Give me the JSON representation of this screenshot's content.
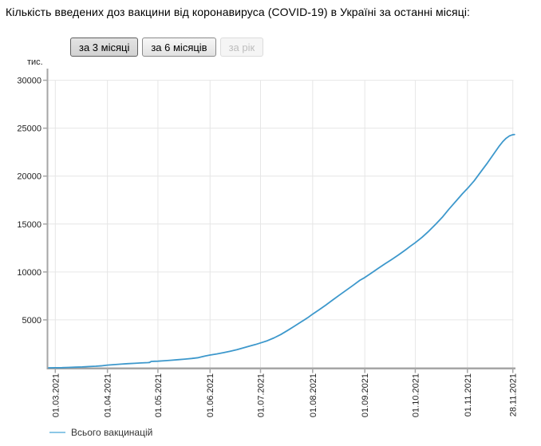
{
  "title": "Кількість введених доз вакцини від коронавируса (COVID-19) в Україні за останні місяці:",
  "buttons": [
    {
      "label": "за 3 місяці",
      "state": "active"
    },
    {
      "label": "за 6 місяців",
      "state": "default"
    },
    {
      "label": "за рік",
      "state": "disabled"
    }
  ],
  "chart_data": {
    "type": "line",
    "title": "",
    "xlabel": "",
    "ylabel": "тис.",
    "x_unit": "days since 01.03.2021",
    "y_unit": "thousand doses",
    "ylim": [
      0,
      31200
    ],
    "y_ticks": [
      5000,
      10000,
      15000,
      20000,
      25000,
      30000
    ],
    "x_ticks": [
      {
        "label": "01.03.2021",
        "day": 0
      },
      {
        "label": "01.04.2021",
        "day": 31
      },
      {
        "label": "01.05.2021",
        "day": 61
      },
      {
        "label": "01.06.2021",
        "day": 92
      },
      {
        "label": "01.07.2021",
        "day": 122
      },
      {
        "label": "01.08.2021",
        "day": 153
      },
      {
        "label": "01.09.2021",
        "day": 184
      },
      {
        "label": "01.10.2021",
        "day": 214
      },
      {
        "label": "01.11.2021",
        "day": 245
      },
      {
        "label": "28.11.2021",
        "day": 272
      }
    ],
    "grid": true,
    "legend_position": "bottom-left",
    "colors": {
      "line": "#3d98cc",
      "legend_dash": "#8cc7e6",
      "grid": "#e6e6e6",
      "axis": "#a6a6a6",
      "label": "#222222"
    },
    "series": [
      {
        "name": "Всього вакцинацій",
        "color": "#3d98cc",
        "points": [
          [
            -4,
            1
          ],
          [
            0,
            8
          ],
          [
            4,
            20
          ],
          [
            8,
            40
          ],
          [
            12,
            65
          ],
          [
            16,
            95
          ],
          [
            20,
            130
          ],
          [
            24,
            170
          ],
          [
            28,
            220
          ],
          [
            31,
            280
          ],
          [
            35,
            330
          ],
          [
            39,
            380
          ],
          [
            43,
            430
          ],
          [
            47,
            470
          ],
          [
            51,
            505
          ],
          [
            55,
            540
          ],
          [
            56,
            555
          ],
          [
            57,
            665
          ],
          [
            59,
            680
          ],
          [
            61,
            695
          ],
          [
            65,
            740
          ],
          [
            69,
            790
          ],
          [
            73,
            845
          ],
          [
            77,
            905
          ],
          [
            81,
            975
          ],
          [
            85,
            1060
          ],
          [
            89,
            1230
          ],
          [
            92,
            1330
          ],
          [
            96,
            1450
          ],
          [
            100,
            1580
          ],
          [
            104,
            1730
          ],
          [
            108,
            1900
          ],
          [
            112,
            2090
          ],
          [
            116,
            2290
          ],
          [
            119,
            2430
          ],
          [
            122,
            2600
          ],
          [
            126,
            2820
          ],
          [
            130,
            3120
          ],
          [
            134,
            3470
          ],
          [
            138,
            3890
          ],
          [
            142,
            4330
          ],
          [
            146,
            4780
          ],
          [
            150,
            5220
          ],
          [
            153,
            5600
          ],
          [
            157,
            6080
          ],
          [
            161,
            6570
          ],
          [
            165,
            7080
          ],
          [
            169,
            7600
          ],
          [
            173,
            8100
          ],
          [
            177,
            8600
          ],
          [
            181,
            9120
          ],
          [
            184,
            9420
          ],
          [
            188,
            9900
          ],
          [
            192,
            10380
          ],
          [
            196,
            10850
          ],
          [
            200,
            11300
          ],
          [
            204,
            11780
          ],
          [
            208,
            12280
          ],
          [
            211,
            12680
          ],
          [
            214,
            13050
          ],
          [
            218,
            13620
          ],
          [
            222,
            14250
          ],
          [
            226,
            14950
          ],
          [
            230,
            15700
          ],
          [
            234,
            16550
          ],
          [
            238,
            17350
          ],
          [
            242,
            18150
          ],
          [
            245,
            18700
          ],
          [
            249,
            19500
          ],
          [
            253,
            20450
          ],
          [
            257,
            21400
          ],
          [
            261,
            22400
          ],
          [
            264,
            23150
          ],
          [
            266,
            23600
          ],
          [
            268,
            23950
          ],
          [
            270,
            24200
          ],
          [
            272,
            24320
          ],
          [
            273,
            24335
          ]
        ]
      }
    ]
  }
}
